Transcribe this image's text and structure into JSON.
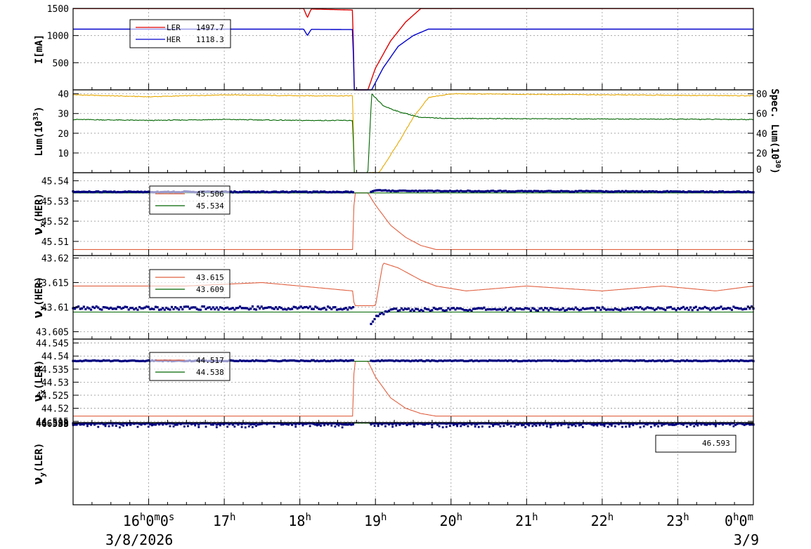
{
  "chart_data": [
    {
      "type": "line",
      "ylabel": "I[mA]",
      "ylim": [
        0,
        1500
      ],
      "yticks": [
        "1500",
        "1000",
        "500"
      ],
      "grid": true,
      "legend": {
        "position": "top-left",
        "entries": [
          {
            "name": "LER",
            "value": "1497.7",
            "color": "#dd0000"
          },
          {
            "name": "HER",
            "value": "1118.3",
            "color": "#0000cc"
          }
        ]
      },
      "series": [
        {
          "name": "LER",
          "color": "#dd0000",
          "x": [
            15.0,
            18.05,
            18.1,
            18.15,
            18.7,
            18.72,
            18.9,
            19.0,
            19.2,
            19.4,
            19.6,
            19.8,
            22.0,
            24.0
          ],
          "values": [
            1497.7,
            1497.7,
            1330,
            1490,
            1470,
            0,
            0,
            400,
            900,
            1250,
            1497.7,
            1497.7,
            1497.7,
            1497.7
          ]
        },
        {
          "name": "HER",
          "color": "#0000cc",
          "x": [
            15.0,
            18.05,
            18.1,
            18.15,
            18.7,
            18.72,
            18.95,
            19.1,
            19.3,
            19.5,
            19.7,
            20.0,
            24.0
          ],
          "values": [
            1118.3,
            1118.3,
            1000,
            1115,
            1110,
            0,
            0,
            400,
            800,
            1000,
            1118.3,
            1118.3,
            1118.3
          ]
        }
      ]
    },
    {
      "type": "line",
      "ylabel": "Lum(10^33)",
      "ylabel2": "Spec. Lum(10^30)",
      "ylim": [
        0,
        42
      ],
      "y2lim": [
        0,
        84
      ],
      "yticks": [
        "40",
        "30",
        "20",
        "10"
      ],
      "y2ticks": [
        "80",
        "60",
        "40",
        "20",
        "0"
      ],
      "grid": true,
      "series": [
        {
          "name": "",
          "color": "#e6a800",
          "x": [
            15.0,
            16.0,
            17.0,
            18.0,
            18.7,
            18.72,
            19.05,
            19.3,
            19.5,
            19.7,
            20.0,
            24.0
          ],
          "values": [
            39.5,
            38.5,
            39.5,
            39.0,
            39.0,
            0,
            0,
            15,
            28,
            38,
            40.0,
            39.0
          ]
        },
        {
          "name": "",
          "color": "#006600",
          "x": [
            15.0,
            16.0,
            17.0,
            18.0,
            18.7,
            18.72,
            18.9,
            18.95,
            19.1,
            19.3,
            19.6,
            20.0,
            24.0
          ],
          "values": [
            27.0,
            26.5,
            27.0,
            26.5,
            26.5,
            0,
            0,
            40,
            34,
            31,
            28,
            27.5,
            27.0
          ]
        }
      ]
    },
    {
      "type": "line",
      "ylabel": "νx(HER)",
      "ylim": [
        45.503,
        45.544
      ],
      "yticks": [
        "45.54",
        "45.53",
        "45.52",
        "45.51"
      ],
      "grid": true,
      "legend": {
        "position": "top-left",
        "entries": [
          {
            "name": "",
            "value": "45.506",
            "color": "#e06040"
          },
          {
            "name": "",
            "value": "45.534",
            "color": "#006600"
          }
        ]
      },
      "series": [
        {
          "name": "",
          "color": "#e06040",
          "x": [
            15.0,
            18.7,
            18.72,
            18.9,
            19.0,
            19.2,
            19.4,
            19.6,
            19.8,
            24.0
          ],
          "values": [
            45.506,
            45.506,
            45.534,
            45.534,
            45.528,
            45.518,
            45.512,
            45.508,
            45.506,
            45.506
          ]
        },
        {
          "name": "",
          "color": "#006600",
          "x": [
            15.0,
            24.0
          ],
          "values": [
            45.534,
            45.534
          ]
        },
        {
          "name": "",
          "color": "#000080",
          "x": [
            15.0,
            18.7,
            18.9,
            19.0,
            19.2,
            24.0
          ],
          "values": [
            45.5345,
            45.5345,
            45.5335,
            45.5355,
            45.535,
            45.5345
          ]
        }
      ]
    },
    {
      "type": "line",
      "ylabel": "νy(HER)",
      "ylim": [
        43.6035,
        43.6205
      ],
      "yticks": [
        "43.62",
        "43.615",
        "43.61",
        "43.605"
      ],
      "grid": true,
      "legend": {
        "position": "top-left",
        "entries": [
          {
            "name": "",
            "value": "43.615",
            "color": "#e06040"
          },
          {
            "name": "",
            "value": "43.609",
            "color": "#006600"
          }
        ]
      },
      "series": [
        {
          "name": "",
          "color": "#e06040",
          "x": [
            15.0,
            16.5,
            17.5,
            18.0,
            18.7,
            18.72,
            19.0,
            19.1,
            19.3,
            19.6,
            19.8,
            20.2,
            21.0,
            22.0,
            22.8,
            23.5,
            24.0
          ],
          "values": [
            43.6143,
            43.6143,
            43.615,
            43.6143,
            43.6133,
            43.6103,
            43.6103,
            43.619,
            43.618,
            43.6155,
            43.6143,
            43.6133,
            43.6143,
            43.6133,
            43.6143,
            43.6133,
            43.6143
          ]
        },
        {
          "name": "",
          "color": "#006600",
          "x": [
            15.0,
            24.0
          ],
          "values": [
            43.609,
            43.609
          ]
        },
        {
          "name": "",
          "color": "#000080",
          "x": [
            15.0,
            18.7,
            18.95,
            19.0,
            19.2,
            24.0
          ],
          "values": [
            43.6098,
            43.6098,
            43.6065,
            43.608,
            43.6095,
            43.6098
          ]
        }
      ]
    },
    {
      "type": "line",
      "ylabel": "νx(LER)",
      "ylim": [
        44.5145,
        44.5465
      ],
      "yticks": [
        "44.545",
        "44.54",
        "44.535",
        "44.53",
        "44.525",
        "44.52",
        "44.515"
      ],
      "grid": true,
      "legend": {
        "position": "top-left",
        "entries": [
          {
            "name": "",
            "value": "44.517",
            "color": "#e06040"
          },
          {
            "name": "",
            "value": "44.538",
            "color": "#006600"
          }
        ]
      },
      "series": [
        {
          "name": "",
          "color": "#e06040",
          "x": [
            15.0,
            18.7,
            18.72,
            18.9,
            19.0,
            19.2,
            19.4,
            19.6,
            19.8,
            24.0
          ],
          "values": [
            44.517,
            44.517,
            44.538,
            44.538,
            44.532,
            44.524,
            44.52,
            44.518,
            44.517,
            44.517
          ]
        },
        {
          "name": "",
          "color": "#006600",
          "x": [
            15.0,
            24.0
          ],
          "values": [
            44.538,
            44.538
          ]
        },
        {
          "name": "",
          "color": "#000080",
          "x": [
            15.0,
            24.0
          ],
          "values": [
            44.5382,
            44.5382
          ]
        }
      ]
    },
    {
      "type": "line",
      "ylabel": "νy(LER)",
      "ylim": [
        44.5765,
        46.5985
      ],
      "yticks": [
        "46.595",
        "46.59",
        "46.585",
        "46.58"
      ],
      "grid": true,
      "legend": {
        "position": "top-right",
        "entries": [
          {
            "name": "",
            "value": "46.593",
            "color": "#e06040"
          }
        ]
      },
      "series": [
        {
          "name": "",
          "color": "#e06040",
          "x": [
            15.0,
            18.7,
            18.9,
            19.05,
            19.15,
            19.3,
            19.6,
            24.0
          ],
          "values": [
            46.593,
            46.593,
            46.588,
            46.5775,
            46.584,
            46.59,
            46.593,
            46.593
          ]
        },
        {
          "name": "",
          "color": "#006600",
          "x": [
            15.0,
            24.0
          ],
          "values": [
            46.587,
            46.587
          ]
        },
        {
          "name": "",
          "color": "#000080",
          "x": [
            15.0,
            24.0
          ],
          "values": [
            46.5895,
            46.5895
          ]
        }
      ]
    }
  ],
  "xaxis": {
    "xlim": [
      15.0,
      24.0
    ],
    "ticks": [
      {
        "x": 16,
        "main": "16",
        "sup": "h",
        "rest": "0",
        "sup2": "m",
        "rest2": "0",
        "sup3": "s"
      },
      {
        "x": 17,
        "main": "17",
        "sup": "h"
      },
      {
        "x": 18,
        "main": "18",
        "sup": "h"
      },
      {
        "x": 19,
        "main": "19",
        "sup": "h"
      },
      {
        "x": 20,
        "main": "20",
        "sup": "h"
      },
      {
        "x": 21,
        "main": "21",
        "sup": "h"
      },
      {
        "x": 22,
        "main": "22",
        "sup": "h"
      },
      {
        "x": 23,
        "main": "23",
        "sup": "h"
      },
      {
        "x": 24,
        "main": "0",
        "sup": "h",
        "rest": "0",
        "sup2": "m"
      }
    ],
    "date_left": "3/8/2026",
    "date_right": "3/9"
  }
}
